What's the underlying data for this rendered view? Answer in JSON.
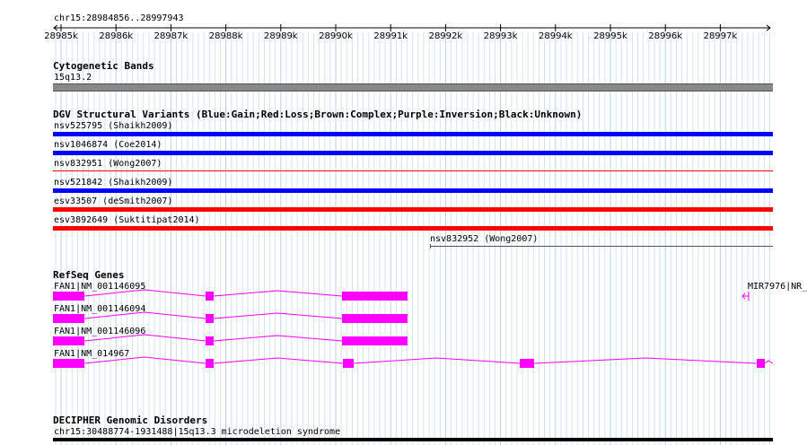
{
  "ruler": {
    "region": "chr15:28984856..28997943",
    "ticks": [
      "28985k",
      "28986k",
      "28987k",
      "28988k",
      "28989k",
      "28990k",
      "28991k",
      "28992k",
      "28993k",
      "28994k",
      "28995k",
      "28996k",
      "28997k"
    ]
  },
  "cyto": {
    "title": "Cytogenetic Bands",
    "band": "15q13.2",
    "color": "#888888"
  },
  "dgv": {
    "title": "DGV Structural Variants (Blue:Gain;Red:Loss;Brown:Complex;Purple:Inversion;Black:Unknown)",
    "variants": [
      {
        "label": "nsv525795 (Shaikh2009)",
        "color": "#0000ff"
      },
      {
        "label": "nsv1046874 (Coe2014)",
        "color": "#0000ff"
      },
      {
        "label": "nsv832951 (Wong2007)",
        "color": "#ff0000"
      },
      {
        "label": "nsv521842 (Shaikh2009)",
        "color": "#0000ff"
      },
      {
        "label": "esv33507 (deSmith2007)",
        "color": "#ff0000"
      },
      {
        "label": "esv3892649 (Suktitipat2014)",
        "color": "#ff0000"
      },
      {
        "label": "nsv832952 (Wong2007)",
        "color": "#555555"
      }
    ]
  },
  "refseq": {
    "title": "RefSeq Genes",
    "color": "#ff00ff",
    "genes": [
      {
        "label": "FAN1|NM_001146095"
      },
      {
        "label": "FAN1|NM_001146094"
      },
      {
        "label": "FAN1|NM_001146096"
      },
      {
        "label": "FAN1|NM_014967"
      },
      {
        "label": "MIR7976|NR_"
      }
    ]
  },
  "decipher": {
    "title": "DECIPHER Genomic Disorders",
    "item": "chr15:30488774-1931488|15q13.3 microdeletion syndrome",
    "color": "#000000"
  }
}
